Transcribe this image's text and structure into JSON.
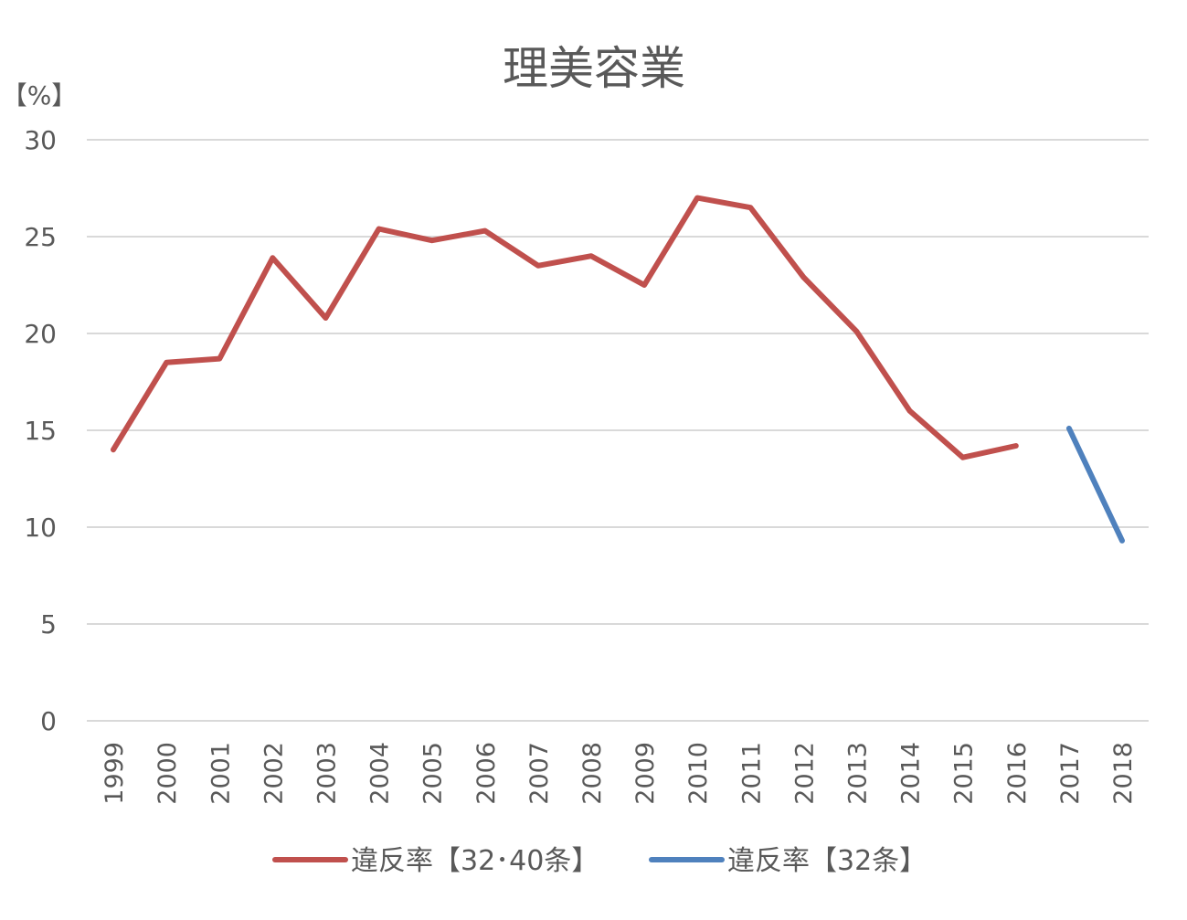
{
  "chart_data": {
    "type": "line",
    "title": "理美容業",
    "ylabel": "【%】",
    "xlabel": "",
    "ylim": [
      0,
      30
    ],
    "yticks": [
      "0",
      "5",
      "10",
      "15",
      "20",
      "25",
      "30"
    ],
    "categories": [
      "1999",
      "2000",
      "2001",
      "2002",
      "2003",
      "2004",
      "2005",
      "2006",
      "2007",
      "2008",
      "2009",
      "2010",
      "2011",
      "2012",
      "2013",
      "2014",
      "2015",
      "2016",
      "2017",
      "2018"
    ],
    "grid": true,
    "legend_position": "bottom",
    "series": [
      {
        "name": "違反率【32･40条】",
        "color": "#c0504d",
        "values": [
          14.0,
          18.5,
          18.7,
          23.9,
          20.8,
          25.4,
          24.8,
          25.3,
          23.5,
          24.0,
          22.5,
          27.0,
          26.5,
          22.9,
          20.1,
          16.0,
          13.6,
          14.2,
          null,
          null
        ]
      },
      {
        "name": "違反率【32条】",
        "color": "#4f81bd",
        "values": [
          null,
          null,
          null,
          null,
          null,
          null,
          null,
          null,
          null,
          null,
          null,
          null,
          null,
          null,
          null,
          null,
          null,
          null,
          15.1,
          9.3
        ]
      }
    ]
  }
}
